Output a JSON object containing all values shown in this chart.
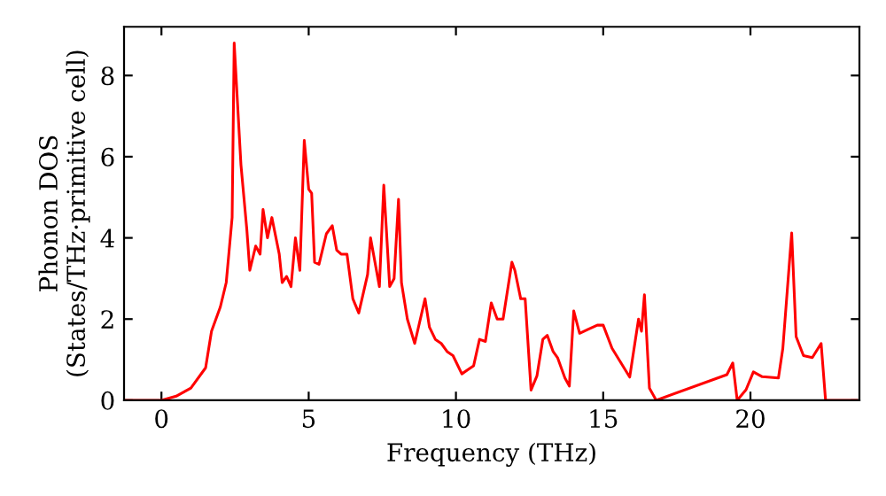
{
  "chart_data": {
    "type": "line",
    "xlabel": "Frequency (THz)",
    "ylabel": "Phonon DOS\n(States/THz·primitive cell)",
    "xlim": [
      -1.27,
      23.7
    ],
    "ylim": [
      0,
      9.2
    ],
    "xticks": [
      0,
      5,
      10,
      15,
      20
    ],
    "yticks": [
      0,
      2,
      4,
      6,
      8
    ],
    "grid": false,
    "legend": false,
    "marker": "none",
    "line_style": "solid",
    "series": [
      {
        "color": "#ff0000",
        "x": [
          -1.27,
          0,
          0.5,
          1,
          1.5,
          1.7,
          2,
          2.2,
          2.4,
          2.47,
          2.7,
          2.9,
          3.0,
          3.2,
          3.35,
          3.45,
          3.6,
          3.75,
          4.0,
          4.1,
          4.25,
          4.4,
          4.55,
          4.7,
          4.85,
          5.0,
          5.1,
          5.2,
          5.35,
          5.6,
          5.8,
          5.95,
          6.1,
          6.3,
          6.5,
          6.7,
          7.0,
          7.1,
          7.4,
          7.55,
          7.75,
          7.9,
          8.05,
          8.15,
          8.35,
          8.6,
          8.95,
          9.1,
          9.3,
          9.5,
          9.7,
          9.9,
          10.2,
          10.4,
          10.6,
          10.8,
          11.0,
          11.2,
          11.4,
          11.6,
          11.9,
          12.0,
          12.2,
          12.35,
          12.55,
          12.75,
          12.95,
          13.1,
          13.3,
          13.45,
          13.7,
          13.85,
          14.0,
          14.2,
          14.5,
          14.8,
          15.0,
          15.3,
          15.9,
          16.2,
          16.3,
          16.4,
          16.57,
          16.8,
          19.2,
          19.4,
          19.55,
          19.85,
          20.1,
          20.4,
          20.95,
          21.1,
          21.4,
          21.55,
          21.8,
          22.1,
          22.4,
          22.55,
          23.6
        ],
        "values": [
          0,
          0,
          0.1,
          0.3,
          0.8,
          1.7,
          2.3,
          2.9,
          4.5,
          8.8,
          5.8,
          4.2,
          3.2,
          3.8,
          3.6,
          4.7,
          4.0,
          4.5,
          3.6,
          2.9,
          3.05,
          2.8,
          4.0,
          3.2,
          6.4,
          5.2,
          5.1,
          3.4,
          3.35,
          4.1,
          4.3,
          3.7,
          3.6,
          3.6,
          2.5,
          2.15,
          3.1,
          4.0,
          2.8,
          5.3,
          2.8,
          3.0,
          4.95,
          2.9,
          2.0,
          1.4,
          2.5,
          1.8,
          1.5,
          1.4,
          1.2,
          1.1,
          0.65,
          0.75,
          0.85,
          1.5,
          1.45,
          2.4,
          2.0,
          2.0,
          3.4,
          3.2,
          2.5,
          2.5,
          0.25,
          0.6,
          1.5,
          1.6,
          1.2,
          1.05,
          0.55,
          0.35,
          2.2,
          1.65,
          1.75,
          1.85,
          1.85,
          1.28,
          0.57,
          2.0,
          1.7,
          2.6,
          0.3,
          0,
          0.63,
          0.92,
          0,
          0.26,
          0.7,
          0.58,
          0.55,
          1.28,
          4.12,
          1.57,
          1.1,
          1.05,
          1.4,
          0,
          0
        ]
      }
    ]
  }
}
